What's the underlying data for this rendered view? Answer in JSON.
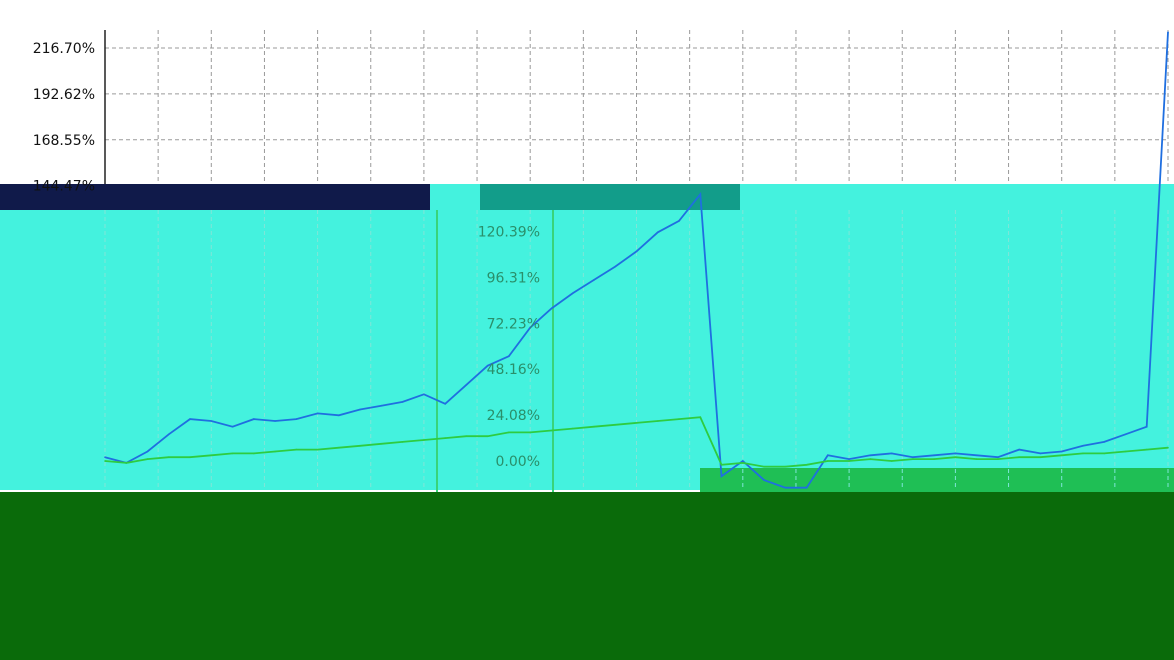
{
  "chart_data": {
    "type": "line",
    "title": "",
    "xlabel": "",
    "ylabel": "",
    "ylim": [
      -2.0,
      225.0
    ],
    "y_ticks": [
      "216.70%",
      "192.62%",
      "168.55%",
      "144.47%",
      "120.39%",
      "96.31%",
      "72.23%",
      "48.16%",
      "24.08%",
      "0.00%"
    ],
    "grid": true,
    "legend": "none",
    "x": [
      0,
      2,
      4,
      6,
      8,
      10,
      12,
      14,
      16,
      18,
      20,
      22,
      24,
      26,
      28,
      30,
      32,
      34,
      36,
      38,
      40,
      42,
      44,
      46,
      48,
      50,
      52,
      54,
      56,
      58,
      60,
      62,
      64,
      66,
      68,
      70,
      72,
      74,
      76,
      78,
      80,
      82,
      84,
      86,
      88,
      90,
      92,
      94,
      96,
      98,
      100
    ],
    "series": [
      {
        "color": "#1f6fe0",
        "values": [
          2,
          -1,
          5,
          14,
          22,
          21,
          18,
          22,
          21,
          22,
          25,
          24,
          27,
          29,
          31,
          35,
          30,
          40,
          50,
          55,
          70,
          80,
          88,
          95,
          102,
          110,
          120,
          126,
          140,
          -8,
          0,
          -10,
          -14,
          -14,
          3,
          1,
          3,
          4,
          2,
          3,
          4,
          3,
          2,
          6,
          4,
          5,
          8,
          10,
          14,
          18,
          225
        ]
      },
      {
        "color": "#2ecc40",
        "values": [
          0,
          -1,
          1,
          2,
          2,
          3,
          4,
          4,
          5,
          6,
          6,
          7,
          8,
          9,
          10,
          11,
          12,
          13,
          13,
          15,
          15,
          16,
          17,
          18,
          19,
          20,
          21,
          22,
          23,
          -2,
          -1,
          -3,
          -3,
          -2,
          0,
          0,
          1,
          0,
          1,
          1,
          2,
          1,
          1,
          2,
          2,
          3,
          4,
          4,
          5,
          6,
          7
        ]
      }
    ]
  },
  "colors": {
    "background": "#ffffff",
    "grid": "#9a9a9a",
    "axis": "#222222",
    "glitch_cyan": "#44f2de",
    "glitch_green": "#0a6b0a",
    "glitch_navy": "#101a4a"
  }
}
